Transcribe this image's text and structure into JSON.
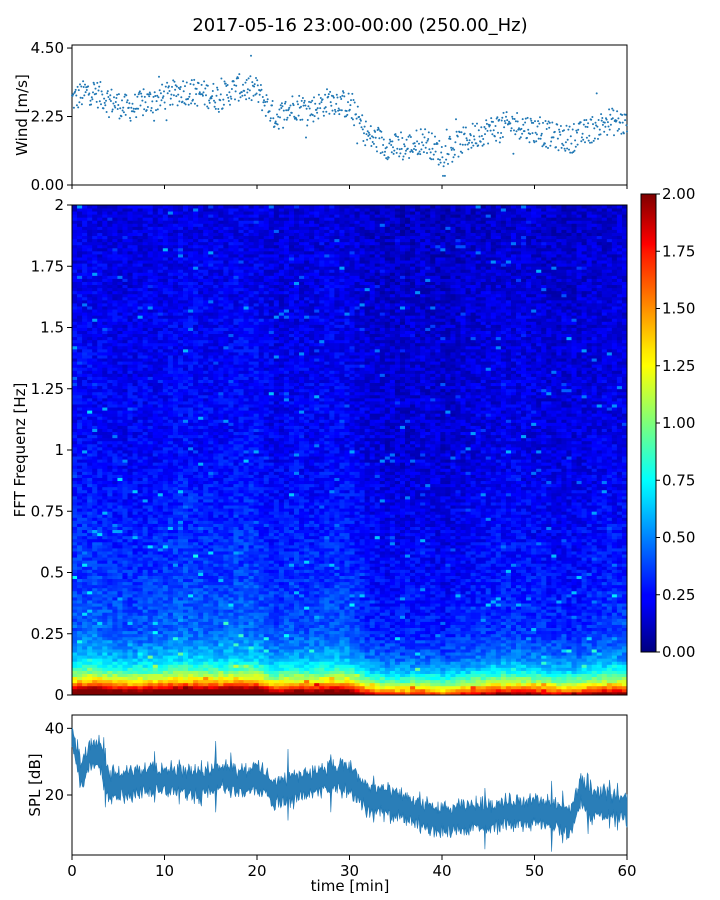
{
  "chart_data": [
    {
      "panel": "wind",
      "type": "scatter",
      "title": "2017-05-16 23:00-00:00 (250.00_Hz)",
      "xlabel": "",
      "ylabel": "Wind [m/s]",
      "xlim": [
        0,
        60
      ],
      "ylim": [
        0,
        4.6
      ],
      "yticks": [
        "0.00",
        "2.25",
        "4.50"
      ],
      "color": "#1f77b4",
      "x": [
        0,
        2,
        4,
        6,
        8,
        10,
        12,
        14,
        16,
        18,
        20,
        22,
        24,
        26,
        28,
        30,
        32,
        34,
        36,
        38,
        40,
        42,
        44,
        46,
        48,
        50,
        52,
        54,
        56,
        58,
        60
      ],
      "y": [
        2.8,
        3.1,
        2.8,
        2.5,
        2.7,
        2.9,
        3.1,
        3.0,
        2.9,
        3.2,
        3.1,
        2.2,
        2.6,
        2.5,
        2.8,
        2.6,
        1.6,
        1.3,
        1.2,
        1.5,
        1.0,
        1.4,
        1.7,
        1.9,
        2.0,
        1.8,
        1.6,
        1.5,
        1.8,
        2.1,
        2.0
      ]
    },
    {
      "panel": "spectrogram",
      "type": "heatmap",
      "xlabel": "",
      "ylabel": "FFT Frequenz [Hz]",
      "xlim": [
        0,
        60
      ],
      "ylim": [
        0,
        2
      ],
      "yticks": [
        "0",
        "0.25",
        "0.5",
        "0.75",
        "1",
        "1.25",
        "1.5",
        "1.75",
        "2"
      ],
      "colormap": "jet",
      "clim": [
        0,
        2
      ],
      "colorbar_ticks": [
        "0.00",
        "0.25",
        "0.50",
        "0.75",
        "1.00",
        "1.25",
        "1.50",
        "1.75",
        "2.00"
      ],
      "freq_profile": {
        "freqs": [
          0,
          0.02,
          0.05,
          0.1,
          0.15,
          0.25,
          0.5,
          1.0,
          1.5,
          2.0
        ],
        "levels": [
          2.0,
          1.6,
          1.1,
          0.7,
          0.5,
          0.35,
          0.28,
          0.2,
          0.18,
          0.15
        ]
      }
    },
    {
      "panel": "spl",
      "type": "line",
      "xlabel": "time [min]",
      "ylabel": "SPL [dB]",
      "xlim": [
        0,
        60
      ],
      "ylim": [
        2,
        44
      ],
      "yticks": [
        "20",
        "40"
      ],
      "xticks": [
        "0",
        "10",
        "20",
        "30",
        "40",
        "50",
        "60"
      ],
      "color": "#1f77b4",
      "x": [
        0,
        1,
        2,
        3,
        4,
        6,
        8,
        10,
        12,
        14,
        16,
        18,
        20,
        22,
        24,
        26,
        28,
        30,
        32,
        34,
        36,
        38,
        40,
        42,
        44,
        46,
        48,
        50,
        52,
        54,
        55,
        56,
        58,
        60
      ],
      "y": [
        37,
        26,
        33,
        32,
        23,
        23,
        25,
        25,
        24,
        23,
        26,
        24,
        25,
        21,
        22,
        24,
        25,
        25,
        19,
        18,
        16,
        14,
        12,
        13,
        14,
        14,
        15,
        15,
        14,
        12,
        22,
        17,
        17,
        16
      ]
    }
  ]
}
